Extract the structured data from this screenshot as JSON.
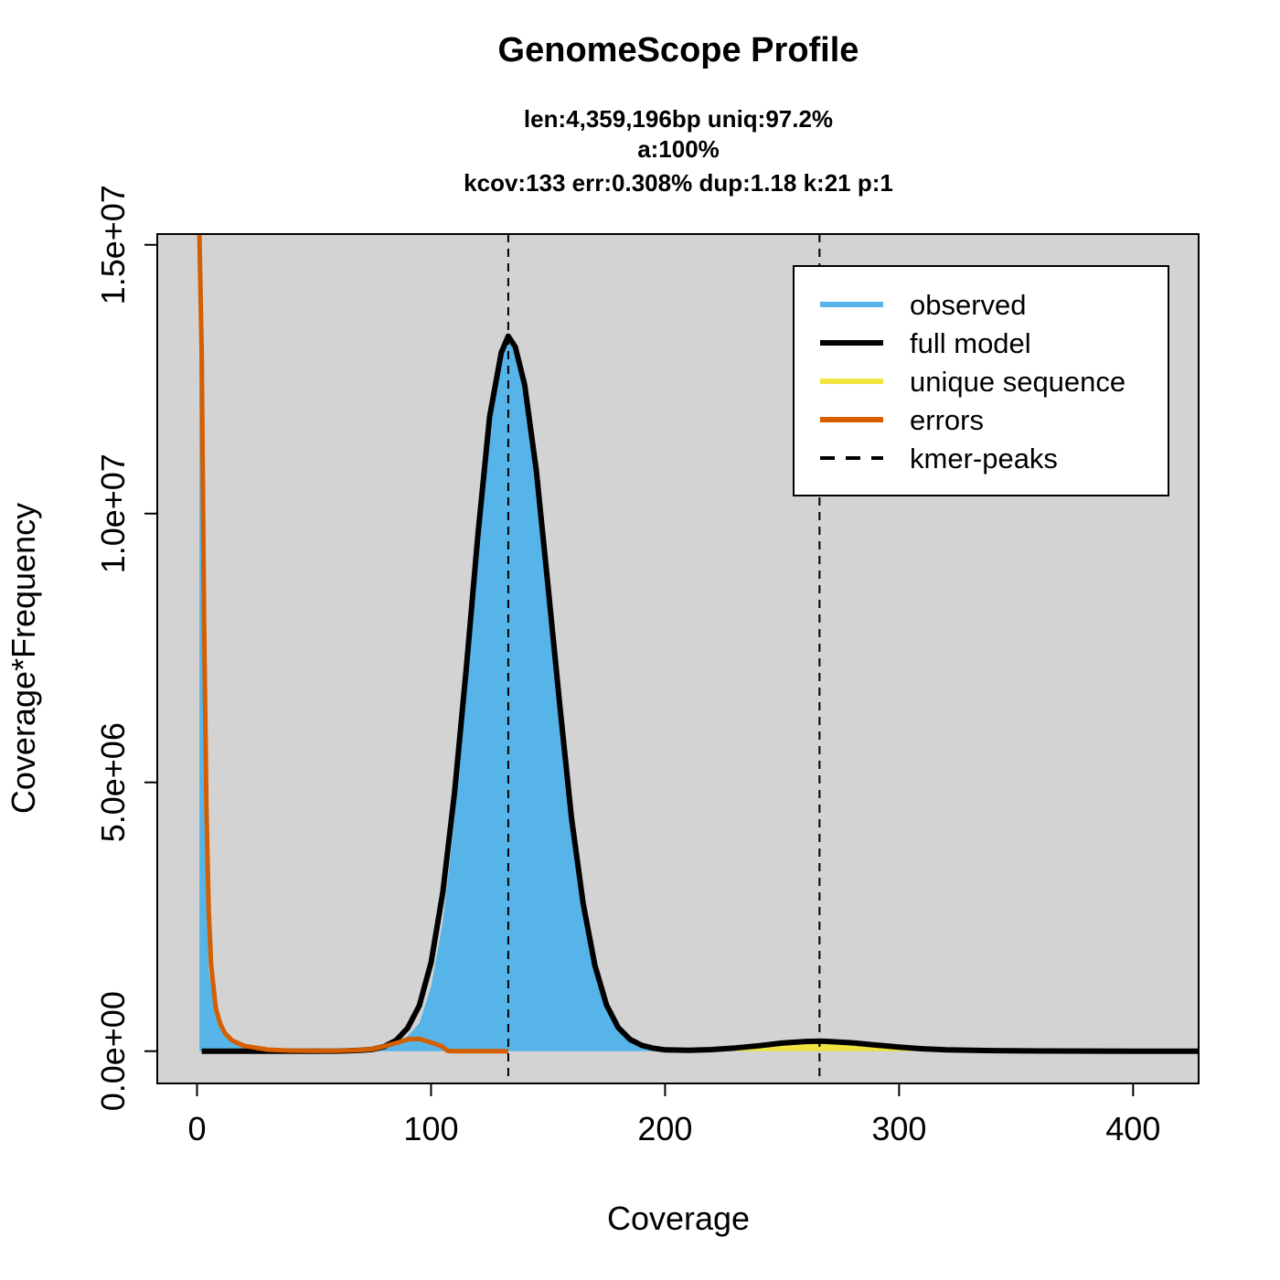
{
  "chart_data": {
    "type": "area",
    "title": "GenomeScope Profile",
    "subtitle_lines": [
      "len:4,359,196bp uniq:97.2%",
      "a:100%",
      "kcov:133 err:0.308%  dup:1.18  k:21 p:1"
    ],
    "xlabel": "Coverage",
    "ylabel": "Coverage*Frequency",
    "xlim": [
      -17,
      428
    ],
    "ylim": [
      -600000,
      15200000
    ],
    "x_ticks": [
      0,
      100,
      200,
      300,
      400
    ],
    "x_tick_labels": [
      "0",
      "100",
      "200",
      "300",
      "400"
    ],
    "y_ticks": [
      0,
      5000000,
      10000000,
      15000000
    ],
    "y_tick_labels": [
      "0.0e+00",
      "5.0e+06",
      "1.0e+07",
      "1.5e+07"
    ],
    "grid": false,
    "plot_background": "#d3d3d3",
    "kmer_peaks": [
      133,
      266
    ],
    "legend": {
      "position": "top-right",
      "entries": [
        {
          "label": "observed",
          "color": "#56b4e9",
          "style": "solid"
        },
        {
          "label": "full model",
          "color": "#000000",
          "style": "solid"
        },
        {
          "label": "unique sequence",
          "color": "#f0e442",
          "style": "solid"
        },
        {
          "label": "errors",
          "color": "#d55e00",
          "style": "solid"
        },
        {
          "label": "kmer-peaks",
          "color": "#000000",
          "style": "dashed"
        }
      ]
    },
    "series": [
      {
        "name": "observed",
        "color": "#56b4e9",
        "x": [
          1,
          2,
          3,
          5,
          8,
          10,
          15,
          20,
          30,
          40,
          50,
          60,
          70,
          75,
          80,
          85,
          90,
          95,
          100,
          105,
          110,
          115,
          120,
          125,
          130,
          133,
          136,
          140,
          145,
          150,
          155,
          160,
          165,
          170,
          175,
          180,
          185,
          190,
          195,
          200,
          210,
          220,
          230,
          240,
          250,
          260,
          266,
          270,
          280,
          290,
          300,
          320,
          340,
          360,
          380,
          400,
          428
        ],
        "y": [
          15000000,
          9000000,
          4500000,
          1500000,
          700000,
          450000,
          200000,
          100000,
          30000,
          10000,
          5000,
          8000,
          20000,
          40000,
          80000,
          150000,
          280000,
          520000,
          1200000,
          2400000,
          4300000,
          6700000,
          9300000,
          11600000,
          12900000,
          13200000,
          13000000,
          12300000,
          10700000,
          8600000,
          6400000,
          4300000,
          2700000,
          1550000,
          830000,
          430000,
          220000,
          120000,
          80000,
          60000,
          50000,
          60000,
          80000,
          110000,
          140000,
          160000,
          165000,
          160000,
          140000,
          100000,
          65000,
          25000,
          10000,
          5000,
          2000,
          1000,
          500
        ]
      },
      {
        "name": "full model",
        "color": "#000000",
        "x": [
          2,
          10,
          20,
          30,
          40,
          50,
          60,
          70,
          75,
          80,
          85,
          90,
          95,
          100,
          105,
          110,
          115,
          120,
          125,
          130,
          133,
          136,
          140,
          145,
          150,
          155,
          160,
          165,
          170,
          175,
          180,
          185,
          190,
          195,
          200,
          210,
          220,
          230,
          240,
          250,
          260,
          266,
          270,
          280,
          290,
          300,
          310,
          320,
          340,
          360,
          380,
          400,
          428
        ],
        "y": [
          0,
          0,
          0,
          0,
          0,
          0,
          2000,
          15000,
          35000,
          85000,
          200000,
          430000,
          850000,
          1650000,
          2950000,
          4800000,
          7100000,
          9600000,
          11800000,
          13000000,
          13300000,
          13100000,
          12400000,
          10800000,
          8650000,
          6450000,
          4350000,
          2750000,
          1600000,
          860000,
          440000,
          220000,
          110000,
          55000,
          25000,
          15000,
          30000,
          60000,
          100000,
          150000,
          180000,
          185000,
          180000,
          155000,
          115000,
          75000,
          45000,
          25000,
          10000,
          4000,
          1500,
          500,
          0
        ]
      },
      {
        "name": "unique sequence",
        "color": "#f0e442",
        "x": [
          200,
          210,
          220,
          230,
          240,
          250,
          260,
          266,
          270,
          280,
          290,
          300,
          310,
          320,
          330,
          340
        ],
        "y": [
          0,
          5000,
          20000,
          45000,
          80000,
          120000,
          150000,
          155000,
          150000,
          125000,
          90000,
          55000,
          30000,
          15000,
          5000,
          0
        ]
      },
      {
        "name": "errors",
        "color": "#d55e00",
        "x": [
          1,
          2,
          3,
          4,
          5,
          6,
          8,
          10,
          12,
          15,
          20,
          30,
          40,
          50,
          60,
          70,
          75,
          80,
          85,
          90,
          95,
          100,
          103,
          105,
          107,
          110,
          120,
          133
        ],
        "y": [
          15200000,
          13000000,
          8000000,
          4500000,
          2600000,
          1600000,
          800000,
          500000,
          330000,
          200000,
          100000,
          30000,
          10000,
          5000,
          8000,
          20000,
          40000,
          90000,
          150000,
          220000,
          230000,
          160000,
          120000,
          80000,
          5000,
          0,
          0,
          0
        ]
      }
    ]
  }
}
